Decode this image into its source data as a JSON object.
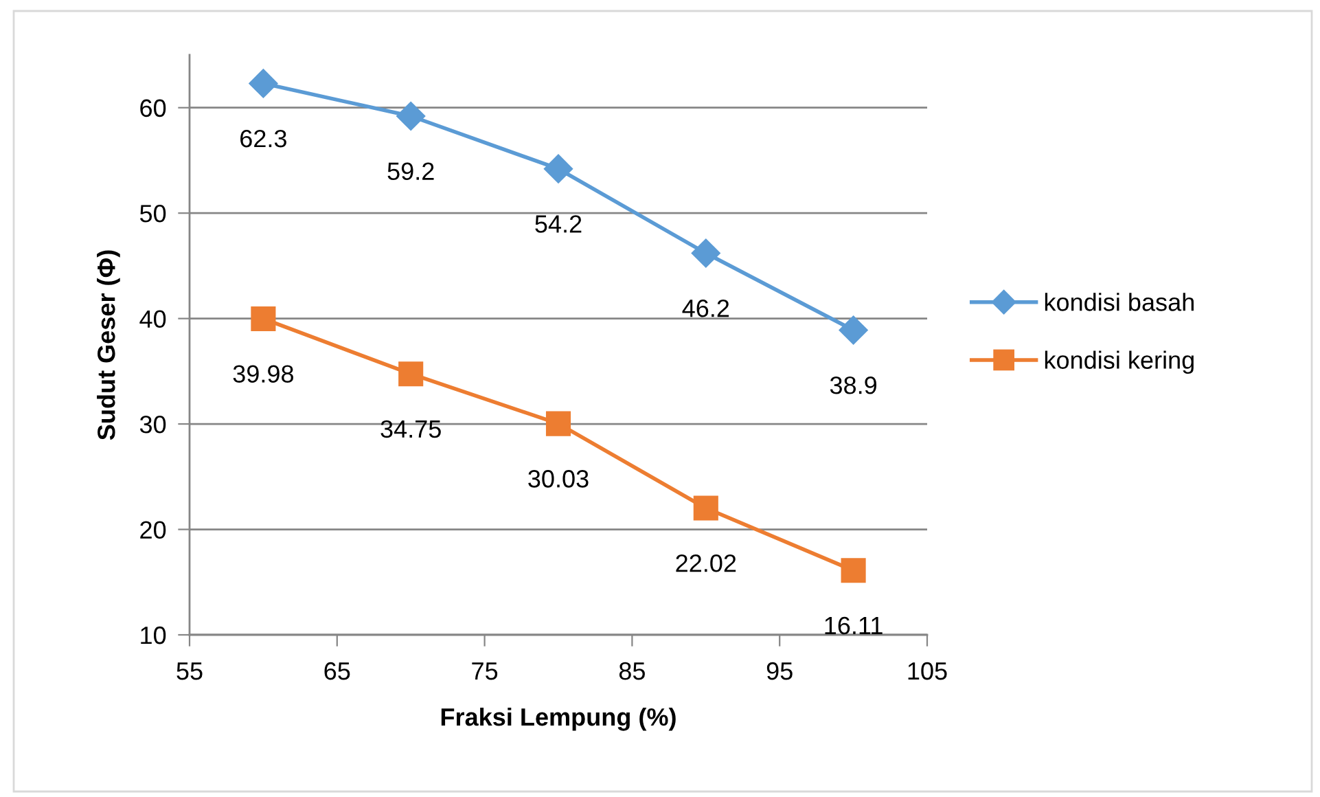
{
  "chart_data": {
    "type": "line",
    "xlabel": "Fraksi Lempung (%)",
    "ylabel": "Sudut Geser (Φ)",
    "x": [
      60,
      70,
      80,
      90,
      100
    ],
    "series": [
      {
        "name": "kondisi basah",
        "color": "#5b9bd5",
        "marker": "diamond",
        "values": [
          62.3,
          59.2,
          54.2,
          46.2,
          38.9
        ]
      },
      {
        "name": "kondisi kering",
        "color": "#ed7d31",
        "marker": "square",
        "values": [
          39.98,
          34.75,
          30.03,
          22.02,
          16.11
        ]
      }
    ],
    "xlim": [
      55,
      105
    ],
    "xticks": [
      55,
      65,
      75,
      85,
      95,
      105
    ],
    "ylim": [
      10,
      65
    ],
    "yticks": [
      10,
      20,
      30,
      40,
      50,
      60
    ],
    "grid": "y",
    "legend": "right",
    "data_labels": true,
    "line_style": "solid"
  }
}
